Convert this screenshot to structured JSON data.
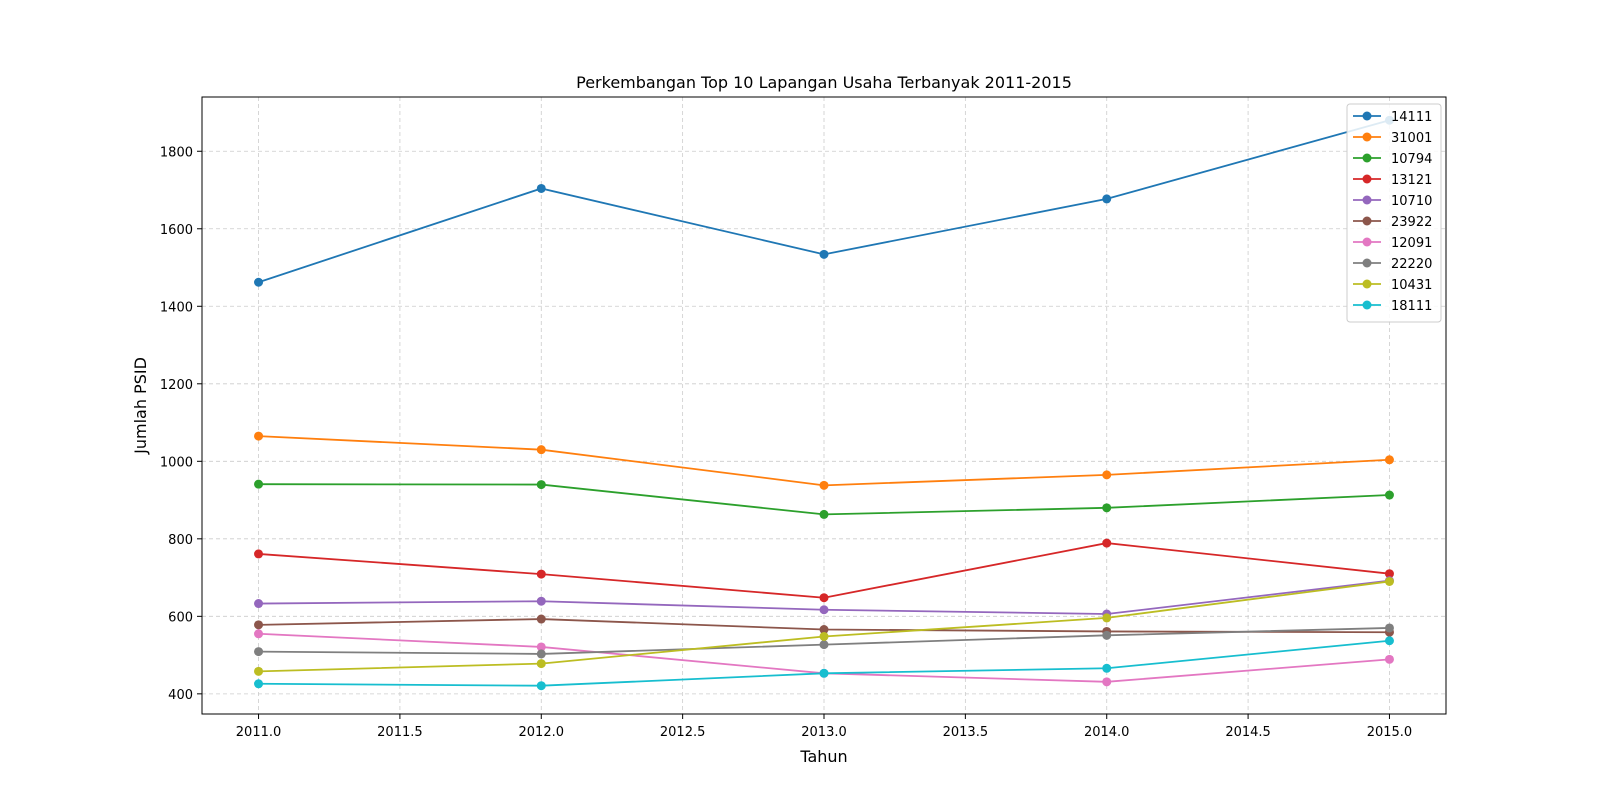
{
  "chart_data": {
    "type": "line",
    "title": "Perkembangan Top 10 Lapangan Usaha Terbanyak 2011-2015",
    "xlabel": "Tahun",
    "ylabel": "Jumlah PSID",
    "x": [
      2011,
      2012,
      2013,
      2014,
      2015
    ],
    "x_ticks": [
      2011.0,
      2011.5,
      2012.0,
      2012.5,
      2013.0,
      2013.5,
      2014.0,
      2014.5,
      2015.0
    ],
    "x_tick_labels": [
      "2011.0",
      "2011.5",
      "2012.0",
      "2012.5",
      "2013.0",
      "2013.5",
      "2014.0",
      "2014.5",
      "2015.0"
    ],
    "y_ticks": [
      400,
      600,
      800,
      1000,
      1200,
      1400,
      1600,
      1800
    ],
    "y_tick_labels": [
      "400",
      "600",
      "800",
      "1000",
      "1200",
      "1400",
      "1600",
      "1800"
    ],
    "xlim": [
      2010.8,
      2015.2
    ],
    "ylim": [
      348,
      1940
    ],
    "grid": true,
    "grid_style": "dashed",
    "legend_position": "top-right",
    "series": [
      {
        "name": "14111",
        "color": "#1f77b4",
        "values": [
          1462,
          1704,
          1534,
          1677,
          1880
        ]
      },
      {
        "name": "31001",
        "color": "#ff7f0e",
        "values": [
          1065,
          1030,
          938,
          965,
          1004
        ]
      },
      {
        "name": "10794",
        "color": "#2ca02c",
        "values": [
          941,
          940,
          863,
          880,
          913
        ]
      },
      {
        "name": "13121",
        "color": "#d62728",
        "values": [
          761,
          709,
          648,
          789,
          710
        ]
      },
      {
        "name": "10710",
        "color": "#9467bd",
        "values": [
          633,
          639,
          617,
          606,
          692
        ]
      },
      {
        "name": "23922",
        "color": "#8c564b",
        "values": [
          578,
          593,
          566,
          561,
          559
        ]
      },
      {
        "name": "12091",
        "color": "#e377c2",
        "values": [
          555,
          521,
          453,
          431,
          489
        ]
      },
      {
        "name": "22220",
        "color": "#7f7f7f",
        "values": [
          509,
          503,
          527,
          551,
          570
        ]
      },
      {
        "name": "10431",
        "color": "#bcbd22",
        "values": [
          458,
          478,
          548,
          596,
          690
        ]
      },
      {
        "name": "18111",
        "color": "#17becf",
        "values": [
          426,
          421,
          453,
          466,
          537
        ]
      }
    ]
  }
}
